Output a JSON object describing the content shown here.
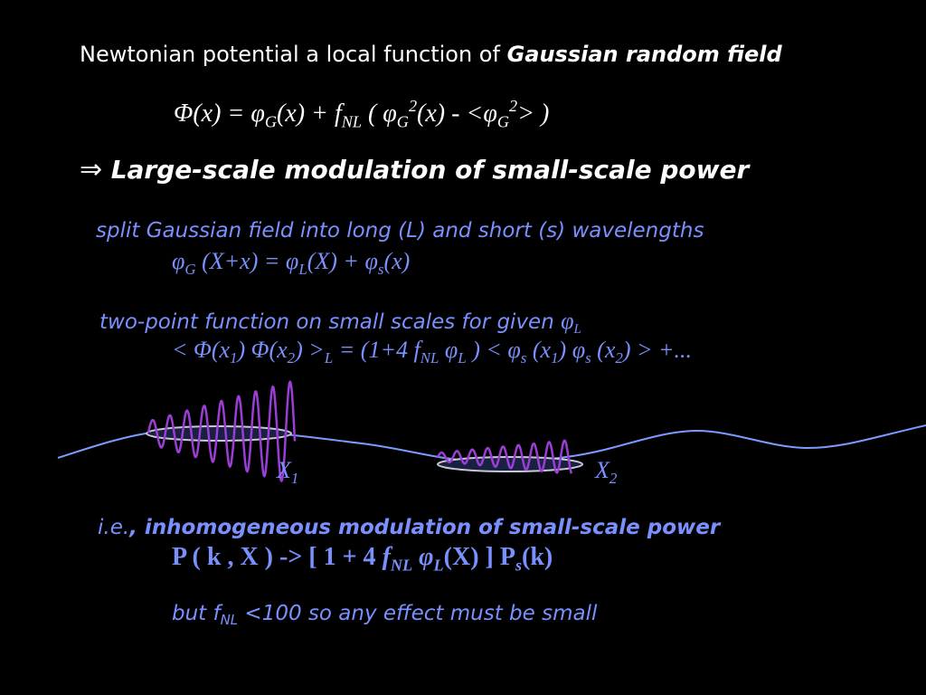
{
  "colors": {
    "background": "#000000",
    "white_text": "#ffffff",
    "blue_text": "#7b90ff",
    "curve_blue": "#7b9cff",
    "wave_purple": "#9a3ed6"
  },
  "line1": {
    "prefix": "Newtonian potential a local function of ",
    "emphasis": "Gaussian random field"
  },
  "eq1": {
    "Phi": "Φ",
    "t1": "(x) = ",
    "phi": "φ",
    "G": "G",
    "t2": "(x) + ",
    "f": "f",
    "NL": "NL",
    "t3": " ( ",
    "phi2": "φ",
    "G2": "G",
    "sq": "2",
    "t4": "(x) - <",
    "phi3": "φ",
    "G3": "G",
    "sq2": "2",
    "t5": "> )"
  },
  "implies": {
    "arrow": "⇒",
    "text": "Large-scale modulation of small-scale power"
  },
  "split": {
    "text": "split Gaussian field into long (L) and short (s) wavelengths"
  },
  "eq2": {
    "phi": "φ",
    "G": "G",
    "t1": " (X+x) = ",
    "phiL": "φ",
    "L": "L",
    "t2": "(X) + ",
    "phis": "φ",
    "s": "s",
    "t3": "(x)"
  },
  "twopoint": {
    "text": "two-point function on small scales for given ",
    "phi": "φ",
    "L": "L"
  },
  "eq3": {
    "t1": "< ",
    "Phi1": "Φ",
    "t2": "(x",
    "one": "1",
    "t3": ") ",
    "Phi2": "Φ",
    "t4": "(x",
    "two": "2",
    "t5": ") >",
    "L": "L",
    "t6": " = (1+4 ",
    "f": "f",
    "NL": "NL",
    "t7": " ",
    "phiL": "φ",
    "L2": "L",
    "t8": " ) < ",
    "phis1": "φ",
    "s1": "s",
    "t9": " (x",
    "one2": "1",
    "t10": ") ",
    "phis2": "φ",
    "s2": "s",
    "t11": " (x",
    "two2": "2",
    "t12": ") > +..."
  },
  "labels": {
    "X1_main": "X",
    "X1_sub": "1",
    "X2_main": "X",
    "X2_sub": "2"
  },
  "ie": {
    "prefix": "i.e.",
    "comma": ",",
    "text": " inhomogeneous modulation of small-scale power"
  },
  "eq4": {
    "t1": "P ( k , X ) -> [ 1 + 4 ",
    "f": "f",
    "NL": "NL",
    "t2": " ",
    "phi": "φ",
    "L": "L",
    "t3": "(X) ] P",
    "s": "s",
    "t4": "(k)"
  },
  "footer": {
    "t1": "but f",
    "NL": "NL",
    "t2": " <100 so any effect must be small"
  }
}
